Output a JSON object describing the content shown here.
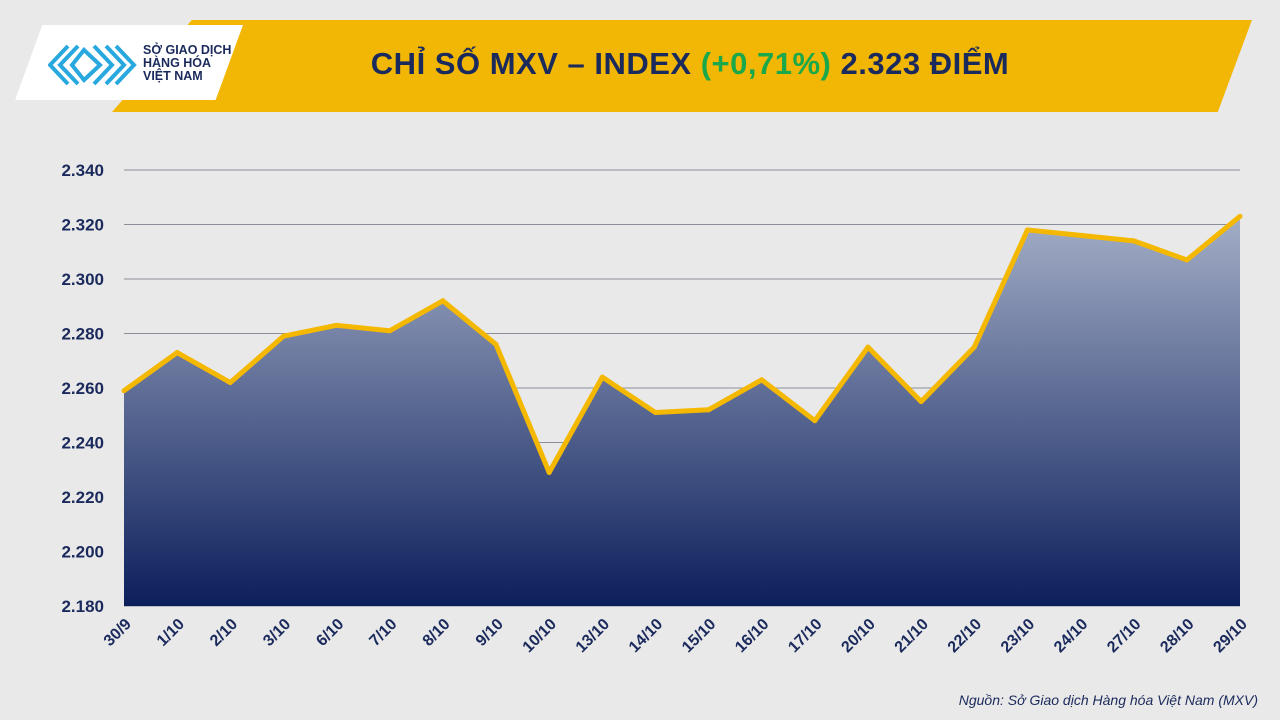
{
  "header": {
    "title_prefix": "CHỈ SỐ MXV – INDEX",
    "title_change": "(+0,71%)",
    "title_value": "2.323 ĐIỂM",
    "logo_lines": [
      "SỞ GIAO DỊCH",
      "HÀNG HÓA",
      "VIỆT NAM"
    ]
  },
  "source": "Nguồn: Sở Giao dịch Hàng hóa Việt Nam (MXV)",
  "colors": {
    "banner": "#f2b705",
    "line": "#f5b800",
    "area_top": "#9aa6c0",
    "area_bottom": "#0c1f5c",
    "title": "#1b2a5c",
    "change": "#1aa84a"
  },
  "chart_data": {
    "type": "area",
    "categories": [
      "30/9",
      "1/10",
      "2/10",
      "3/10",
      "6/10",
      "7/10",
      "8/10",
      "9/10",
      "10/10",
      "13/10",
      "14/10",
      "15/10",
      "16/10",
      "17/10",
      "20/10",
      "21/10",
      "22/10",
      "23/10",
      "24/10",
      "27/10",
      "28/10",
      "29/10"
    ],
    "values": [
      2259,
      2273,
      2262,
      2279,
      2283,
      2281,
      2292,
      2276,
      2229,
      2264,
      2251,
      2252,
      2263,
      2248,
      2275,
      2255,
      2275,
      2318,
      2316,
      2314,
      2307,
      2323
    ],
    "ylim": [
      2180,
      2340
    ],
    "yticks": [
      "2.180",
      "2.200",
      "2.220",
      "2.240",
      "2.260",
      "2.280",
      "2.300",
      "2.320",
      "2.340"
    ],
    "grid": true
  }
}
